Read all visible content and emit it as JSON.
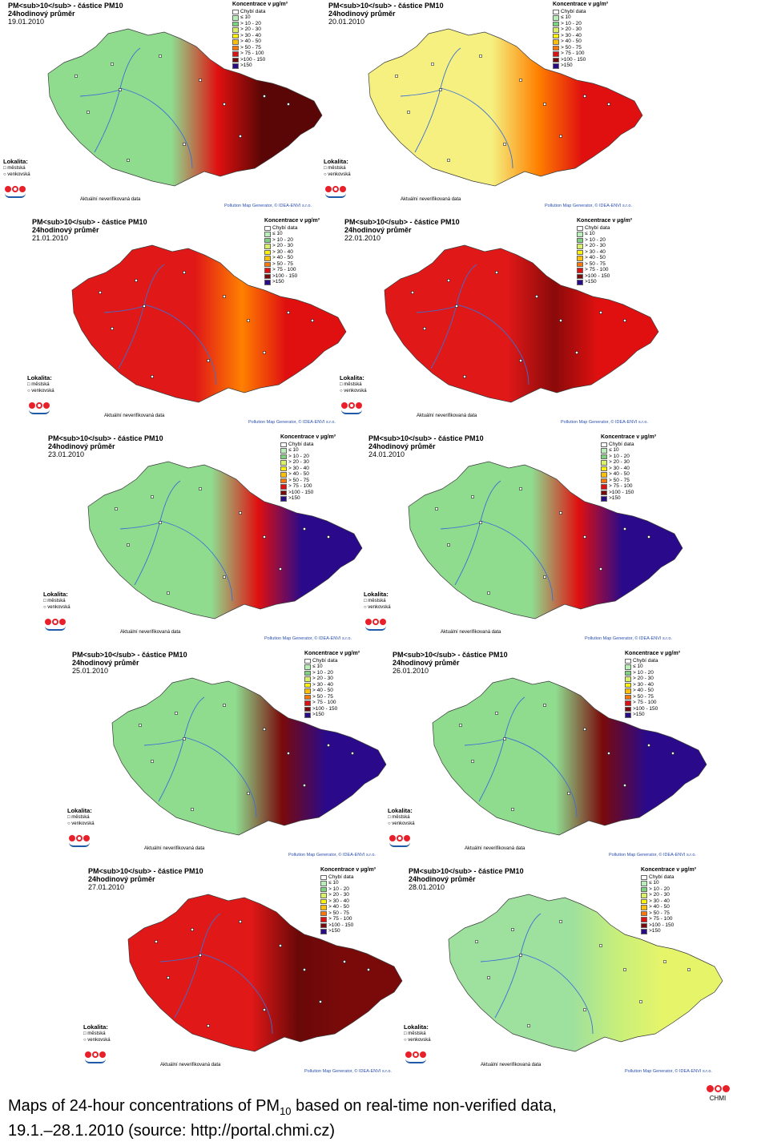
{
  "legend": {
    "title": "Koncentrace v µg/m³",
    "items": [
      {
        "label": "Chybí  data",
        "color": "#ffffff"
      },
      {
        "label": "   ≤  10",
        "color": "#b7f0b7"
      },
      {
        "label": "> 10  -  20",
        "color": "#7cd37c"
      },
      {
        "label": "> 20  -  30",
        "color": "#d9f264"
      },
      {
        "label": "> 30  -  40",
        "color": "#fff200"
      },
      {
        "label": "> 40  -  50",
        "color": "#ffc000"
      },
      {
        "label": "> 50  -  75",
        "color": "#ff7700"
      },
      {
        "label": "> 75  - 100",
        "color": "#e01010"
      },
      {
        "label": ">100  - 150",
        "color": "#7a0a0a"
      },
      {
        "label": ">150",
        "color": "#2a0a8a"
      }
    ]
  },
  "lokalita": {
    "title": "Lokalita:",
    "urban": "městská",
    "rural": "venkovská"
  },
  "aktualni": "Aktuální neverifikovaná data",
  "credit": "Pollution Map Generator, © IDEA-ENVI s.r.o.",
  "panels": [
    {
      "title": "PM<sub>10</sub> - částice PM10",
      "subtitle": "24hodinový průměr",
      "date": "19.01.2010",
      "base": "#8fdc8f",
      "hot": "#e01010",
      "east": "#5a0606"
    },
    {
      "title": "PM<sub>10</sub> - částice PM10",
      "subtitle": "24hodinový průměr",
      "date": "20.01.2010",
      "base": "#f5f080",
      "hot": "#ff8000",
      "east": "#e01010"
    },
    {
      "title": "PM<sub>10</sub> - částice PM10",
      "subtitle": "24hodinový průměr",
      "date": "21.01.2010",
      "base": "#e01818",
      "hot": "#ff8000",
      "east": "#e01010"
    },
    {
      "title": "PM<sub>10</sub> - částice PM10",
      "subtitle": "24hodinový průměr",
      "date": "22.01.2010",
      "base": "#e01818",
      "hot": "#8a0a0a",
      "east": "#e01010"
    },
    {
      "title": "PM<sub>10</sub> - částice PM10",
      "subtitle": "24hodinový průměr",
      "date": "23.01.2010",
      "base": "#8fdc8f",
      "hot": "#e01010",
      "east": "#2a0a8a"
    },
    {
      "title": "PM<sub>10</sub> - částice PM10",
      "subtitle": "24hodinový průměr",
      "date": "24.01.2010",
      "base": "#8fdc8f",
      "hot": "#e01010",
      "east": "#2a0a8a"
    },
    {
      "title": "PM<sub>10</sub> - částice PM10",
      "subtitle": "24hodinový průměr",
      "date": "25.01.2010",
      "base": "#8fdc8f",
      "hot": "#7a0a0a",
      "east": "#2a0a8a"
    },
    {
      "title": "PM<sub>10</sub> - částice PM10",
      "subtitle": "24hodinový průměr",
      "date": "26.01.2010",
      "base": "#8fdc8f",
      "hot": "#7a0a0a",
      "east": "#2a0a8a"
    },
    {
      "title": "PM<sub>10</sub> - částice PM10",
      "subtitle": "24hodinový průměr",
      "date": "27.01.2010",
      "base": "#e01818",
      "hot": "#6a0808",
      "east": "#7a0a0a"
    },
    {
      "title": "PM<sub>10</sub> - částice PM10",
      "subtitle": "24hodinový průměr",
      "date": "28.01.2010",
      "base": "#9ee09e",
      "hot": "#c8ef7a",
      "east": "#e6f46a"
    }
  ],
  "caption": {
    "line1_pre": "Maps of 24-hour concentrations of PM",
    "line1_sub": "10",
    "line1_post": " based on real-time non-verified data,",
    "line2": "19.1.–28.1.2010 (source: http://portal.chmi.cz)"
  },
  "chmi_label": "CHMI"
}
